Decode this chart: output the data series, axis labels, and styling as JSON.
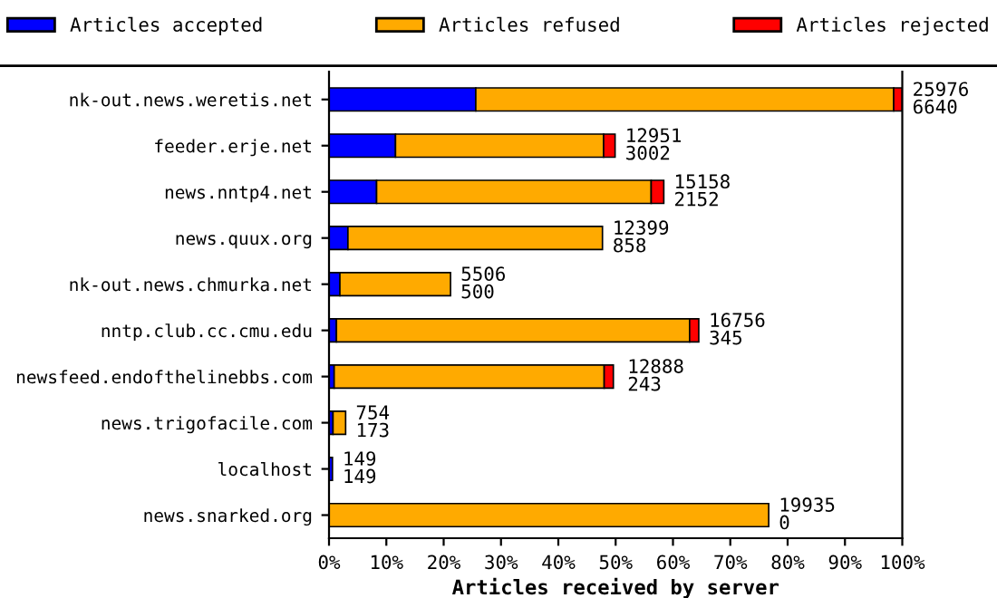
{
  "chart_data": {
    "type": "bar",
    "orientation": "horizontal",
    "stacked": true,
    "xlabel": "Articles received by server",
    "categories": [
      "nk-out.news.weretis.net",
      "feeder.erje.net",
      "news.nntp4.net",
      "news.quux.org",
      "nk-out.news.chmurka.net",
      "nntp.club.cc.cmu.edu",
      "newsfeed.endofthelinebbs.com",
      "news.trigofacile.com",
      "localhost",
      "news.snarked.org"
    ],
    "series": [
      {
        "name": "Articles accepted",
        "color": "#0000ff",
        "values": [
          25.6,
          11.6,
          8.3,
          3.3,
          1.9,
          1.3,
          0.9,
          0.7,
          0.6,
          0
        ]
      },
      {
        "name": "Articles refused",
        "color": "#ffaa00",
        "values": [
          72.9,
          36.3,
          47.9,
          44.4,
          19.3,
          61.6,
          47.1,
          2.2,
          0,
          76.7
        ]
      },
      {
        "name": "Articles rejected",
        "color": "#ff0000",
        "values": [
          1.5,
          2.0,
          2.2,
          0,
          0,
          1.6,
          1.6,
          0,
          0,
          0
        ]
      }
    ],
    "xlim": [
      0,
      100
    ],
    "xticks": [
      {
        "value": 0,
        "label": "0%"
      },
      {
        "value": 10,
        "label": "10%"
      },
      {
        "value": 20,
        "label": "20%"
      },
      {
        "value": 30,
        "label": "30%"
      },
      {
        "value": 40,
        "label": "40%"
      },
      {
        "value": 50,
        "label": "50%"
      },
      {
        "value": 60,
        "label": "60%"
      },
      {
        "value": 70,
        "label": "70%"
      },
      {
        "value": 80,
        "label": "80%"
      },
      {
        "value": 90,
        "label": "90%"
      },
      {
        "value": 100,
        "label": "100%"
      }
    ],
    "annotations": [
      {
        "text": "25976\n6640",
        "x": 100,
        "y": "nk-out.news.weretis.net"
      },
      {
        "text": "12951\n3002",
        "x": 49.9,
        "y": "feeder.erje.net"
      },
      {
        "text": "15158\n2152",
        "x": 58.4,
        "y": "news.nntp4.net"
      },
      {
        "text": "12399\n858",
        "x": 47.7,
        "y": "news.quux.org"
      },
      {
        "text": "5506\n500",
        "x": 21.2,
        "y": "nk-out.news.chmurka.net"
      },
      {
        "text": "16756\n345",
        "x": 64.5,
        "y": "nntp.club.cc.cmu.edu"
      },
      {
        "text": "12888\n243",
        "x": 50.3,
        "y": "newsfeed.endofthelinebbs.com"
      },
      {
        "text": "754\n173",
        "x": 2.9,
        "y": "news.trigofacile.com"
      },
      {
        "text": "149\n149",
        "x": 0.6,
        "y": "localhost"
      },
      {
        "text": "19935\n0",
        "x": 76.7,
        "y": "news.snarked.org"
      }
    ],
    "legend": "top",
    "grid": false
  }
}
